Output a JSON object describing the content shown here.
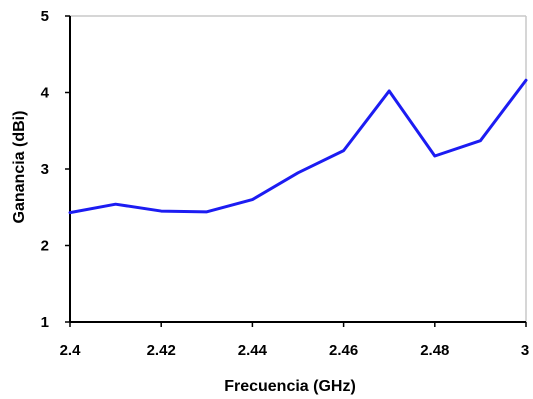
{
  "chart_data": {
    "type": "line",
    "xlabel": "Frecuencia (GHz)",
    "ylabel": "Ganancia (dBi)",
    "x_tick_labels": [
      "2.4",
      "2.42",
      "2.44",
      "2.46",
      "2.48",
      "3"
    ],
    "y_tick_labels": [
      "1",
      "2",
      "3",
      "4",
      "5"
    ],
    "ylim": [
      1,
      5
    ],
    "grid": false,
    "legend": "none",
    "series": [
      {
        "color": "#1c1cf2",
        "x": [
          2.4,
          2.41,
          2.42,
          2.43,
          2.44,
          2.45,
          2.46,
          2.47,
          2.48,
          2.49,
          2.5
        ],
        "values": [
          2.43,
          2.54,
          2.45,
          2.44,
          2.6,
          2.95,
          3.24,
          4.02,
          3.17,
          3.37,
          4.16
        ]
      }
    ]
  }
}
